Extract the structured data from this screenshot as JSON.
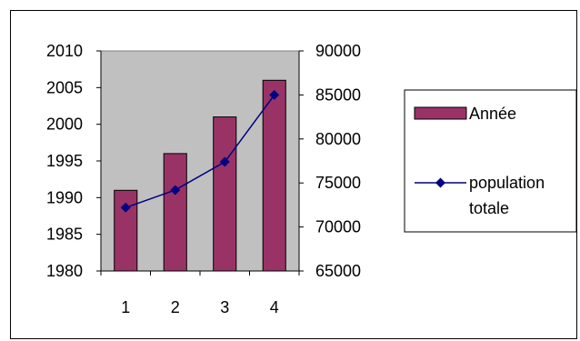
{
  "chart_data": {
    "type": "bar",
    "title": "",
    "xlabel": "",
    "ylabel": "",
    "categories": [
      "1",
      "2",
      "3",
      "4"
    ],
    "bar_series": {
      "name": "Année",
      "axis": "left",
      "values": [
        1991,
        1996,
        2001,
        2006
      ],
      "color": "#993366"
    },
    "line_series": {
      "name_lines": [
        "population",
        "totale"
      ],
      "axis": "right",
      "values": [
        72200,
        74200,
        77400,
        85000
      ],
      "color": "#000080"
    },
    "y_left": {
      "min": 1980,
      "max": 2010,
      "step": 5,
      "ticks": [
        "1980",
        "1985",
        "1990",
        "1995",
        "2000",
        "2005",
        "2010"
      ]
    },
    "y_right": {
      "min": 65000,
      "max": 90000,
      "step": 5000,
      "ticks": [
        "65000",
        "70000",
        "75000",
        "80000",
        "85000",
        "90000"
      ]
    },
    "plot_background": "#c0c0c0",
    "grid": false,
    "legend_position": "right"
  }
}
